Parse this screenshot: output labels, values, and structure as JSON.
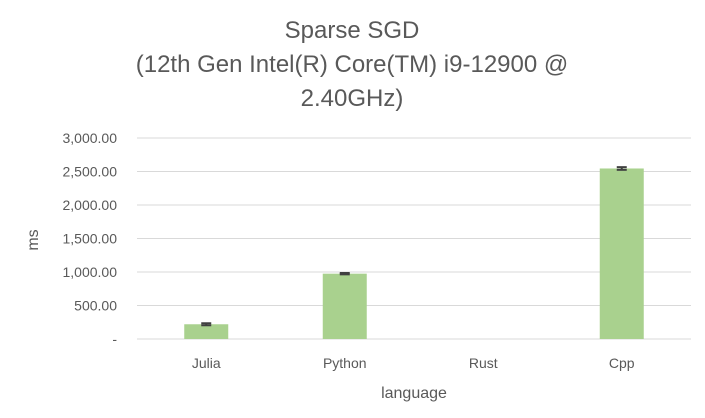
{
  "chart_data": {
    "type": "bar",
    "title_lines": [
      "Sparse SGD",
      "(12th Gen Intel(R) Core(TM) i9-12900 @",
      "2.40GHz)"
    ],
    "xlabel": "language",
    "ylabel": "ms",
    "categories": [
      "Julia",
      "Python",
      "Rust",
      "Cpp"
    ],
    "values": [
      220,
      975,
      0,
      2545
    ],
    "error": [
      15,
      10,
      0,
      20
    ],
    "ylim": [
      0,
      3000
    ],
    "yticks": [
      0,
      500,
      1000,
      1500,
      2000,
      2500,
      3000
    ],
    "ytick_labels": [
      "-",
      "500.00",
      "1,000.00",
      "1,500.00",
      "2,000.00",
      "2,500.00",
      "3,000.00"
    ],
    "bar_color": "#a9d18e",
    "error_color": "#404040",
    "grid": true,
    "legend": "none"
  }
}
